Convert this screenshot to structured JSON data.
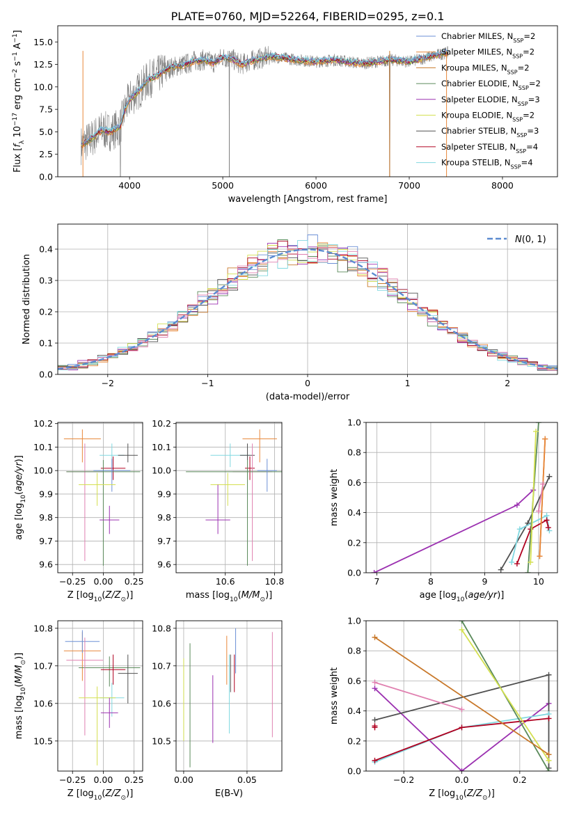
{
  "figure_title": "PLATE=0760, MJD=52264, FIBERID=0295, z=0.1",
  "colors": {
    "chabrier_miles": "#6b8fd6",
    "salpeter_miles": "#e8873a",
    "kroupa_miles": "#c8782a",
    "chabrier_elodie": "#5a8a5a",
    "salpeter_elodie": "#9b30b0",
    "kroupa_elodie": "#d4e050",
    "chabrier_stelib": "#505050",
    "salpeter_stelib": "#b00020",
    "kroupa_stelib": "#80d8e0",
    "pink": "#e080b0",
    "data": "#808080",
    "normal_curve": "#5b8bd0",
    "grid": "#b0b0b0"
  },
  "chart_data": [
    {
      "id": "spectrum",
      "type": "line",
      "title": "PLATE=0760, MJD=52264, FIBERID=0295, z=0.1",
      "xlabel": "wavelength [Angstrom, rest frame]",
      "ylabel": "Flux [f_λ 10^-17 erg cm^-2 s^-1 A^-1]",
      "xlim": [
        3230,
        8590
      ],
      "ylim": [
        0,
        16.8
      ],
      "xticks": [
        "4000",
        "5000",
        "6000",
        "7000",
        "8000"
      ],
      "yticks": [
        "0.0",
        "2.5",
        "5.0",
        "7.5",
        "10.0",
        "12.5",
        "15.0"
      ],
      "grid": false,
      "legend_position": "top-right",
      "legend": [
        {
          "label": "Chabrier MILES, N_SSP=2",
          "color_key": "chabrier_miles"
        },
        {
          "label": "Salpeter MILES, N_SSP=2",
          "color_key": "salpeter_miles"
        },
        {
          "label": "Kroupa MILES, N_SSP=2",
          "color_key": "kroupa_miles"
        },
        {
          "label": "Chabrier ELODIE, N_SSP=2",
          "color_key": "chabrier_elodie"
        },
        {
          "label": "Salpeter ELODIE, N_SSP=3",
          "color_key": "salpeter_elodie"
        },
        {
          "label": "Kroupa ELODIE, N_SSP=2",
          "color_key": "kroupa_elodie"
        },
        {
          "label": "Chabrier STELIB, N_SSP=3",
          "color_key": "chabrier_stelib"
        },
        {
          "label": "Salpeter STELIB, N_SSP=4",
          "color_key": "salpeter_stelib"
        },
        {
          "label": "Kroupa STELIB, N_SSP=4",
          "color_key": "kroupa_stelib"
        }
      ],
      "continuum": {
        "x": [
          3480,
          3600,
          3700,
          3800,
          3900,
          3950,
          4000,
          4100,
          4200,
          4300,
          4400,
          4500,
          4600,
          4700,
          4800,
          4900,
          5000,
          5100,
          5200,
          5300,
          5500,
          5800,
          6000,
          6200,
          6500,
          6800,
          7000,
          7200,
          7400
        ],
        "y": [
          3.5,
          4.3,
          5.2,
          5.0,
          5.6,
          7.5,
          8.6,
          9.6,
          10.8,
          11.3,
          12.0,
          12.3,
          12.5,
          12.9,
          13.0,
          12.7,
          13.3,
          13.1,
          12.5,
          12.9,
          13.4,
          13.0,
          12.8,
          13.0,
          12.6,
          13.0,
          12.8,
          13.3,
          13.8
        ]
      }
    },
    {
      "id": "residuals",
      "type": "bar",
      "xlabel": "(data-model)/error",
      "ylabel": "Normed distribution",
      "xlim": [
        -2.5,
        2.5
      ],
      "ylim": [
        0,
        0.48
      ],
      "xticks": [
        "−2",
        "−1",
        "0",
        "1",
        "2"
      ],
      "yticks": [
        "0.0",
        "0.1",
        "0.2",
        "0.3",
        "0.4"
      ],
      "grid": true,
      "legend_position": "top-right",
      "legend": [
        {
          "label": "N(0,1)",
          "color_key": "normal_curve"
        }
      ],
      "bin_width": 0.1
    },
    {
      "id": "z_age",
      "type": "scatter",
      "xlabel": "Z [log10(Z/Z⊙)]",
      "ylabel": "age [log10(age/yr)]",
      "xlim": [
        -0.37,
        0.32
      ],
      "ylim": [
        9.565,
        10.205
      ],
      "xticks": [
        "−0.25",
        "0.00",
        "0.25"
      ],
      "yticks": [
        "9.6",
        "9.7",
        "9.8",
        "9.9",
        "10.0",
        "10.1",
        "10.2"
      ],
      "grid": true,
      "points": [
        {
          "x": -0.17,
          "y": 10.135,
          "xerr": 0.15,
          "yerr": [
            0.1,
            0.04
          ],
          "color_key": "salpeter_miles"
        },
        {
          "x": 0.07,
          "y": 10.065,
          "xerr": 0.1,
          "yerr": [
            0.05,
            0.05
          ],
          "color_key": "kroupa_stelib"
        },
        {
          "x": 0.2,
          "y": 10.065,
          "xerr": 0.08,
          "yerr": [
            0.03,
            0.05
          ],
          "color_key": "chabrier_stelib"
        },
        {
          "x": 0.08,
          "y": 10.01,
          "xerr": 0.1,
          "yerr": [
            0.05,
            0.05
          ],
          "color_key": "salpeter_stelib"
        },
        {
          "x": -0.15,
          "y": 9.995,
          "xerr": 0.15,
          "yerr": [
            0.38,
            0.12
          ],
          "color_key": "pink"
        },
        {
          "x": 0.0,
          "y": 9.995,
          "xerr": 0.3,
          "yerr": [
            0.4,
            0.05
          ],
          "color_key": "chabrier_elodie"
        },
        {
          "x": 0.07,
          "y": 10.0,
          "xerr": 0.15,
          "yerr": [
            0.09,
            0.05
          ],
          "color_key": "chabrier_miles"
        },
        {
          "x": -0.05,
          "y": 9.94,
          "xerr": 0.15,
          "yerr": [
            0.09,
            0.05
          ],
          "color_key": "kroupa_elodie"
        },
        {
          "x": 0.05,
          "y": 9.79,
          "xerr": 0.08,
          "yerr": [
            0.06,
            0.06
          ],
          "color_key": "salpeter_elodie"
        }
      ]
    },
    {
      "id": "mass_age",
      "type": "scatter",
      "xlabel": "mass [log10(M/M⊙)]",
      "ylabel": "",
      "xlim": [
        10.4,
        10.83
      ],
      "ylim": [
        9.565,
        10.205
      ],
      "xticks": [
        "10.6",
        "10.8"
      ],
      "yticks": [
        "9.6",
        "9.7",
        "9.8",
        "9.9",
        "10.0",
        "10.1",
        "10.2"
      ],
      "grid": true,
      "points": [
        {
          "x": 10.74,
          "y": 10.135,
          "xerr": 0.07,
          "yerr": [
            0.1,
            0.04
          ],
          "color_key": "salpeter_miles"
        },
        {
          "x": 10.62,
          "y": 10.065,
          "xerr": 0.08,
          "yerr": [
            0.05,
            0.05
          ],
          "color_key": "kroupa_stelib"
        },
        {
          "x": 10.69,
          "y": 10.065,
          "xerr": 0.03,
          "yerr": [
            0.03,
            0.05
          ],
          "color_key": "chabrier_stelib"
        },
        {
          "x": 10.7,
          "y": 10.01,
          "xerr": 0.02,
          "yerr": [
            0.05,
            0.05
          ],
          "color_key": "salpeter_stelib"
        },
        {
          "x": 10.71,
          "y": 9.995,
          "xerr": 0.08,
          "yerr": [
            0.38,
            0.12
          ],
          "color_key": "pink"
        },
        {
          "x": 10.69,
          "y": 9.995,
          "xerr": 0.25,
          "yerr": [
            0.4,
            0.05
          ],
          "color_key": "chabrier_elodie"
        },
        {
          "x": 10.77,
          "y": 10.0,
          "xerr": 0.04,
          "yerr": [
            0.09,
            0.05
          ],
          "color_key": "chabrier_miles"
        },
        {
          "x": 10.61,
          "y": 9.94,
          "xerr": 0.07,
          "yerr": [
            0.09,
            0.05
          ],
          "color_key": "kroupa_elodie"
        },
        {
          "x": 10.57,
          "y": 9.79,
          "xerr": 0.05,
          "yerr": [
            0.06,
            0.15
          ],
          "color_key": "salpeter_elodie"
        }
      ]
    },
    {
      "id": "age_weight",
      "type": "line",
      "xlabel": "age [log10(age/yr)]",
      "ylabel": "mass weight",
      "xlim": [
        6.8,
        10.35
      ],
      "ylim": [
        0,
        1.0
      ],
      "xticks": [
        "7",
        "8",
        "9",
        "10"
      ],
      "yticks": [
        "0.0",
        "0.2",
        "0.4",
        "0.6",
        "0.8",
        "1.0"
      ],
      "grid": true,
      "series": [
        {
          "color_key": "salpeter_elodie",
          "x": [
            6.95,
            9.6,
            9.9
          ],
          "y": [
            0.0,
            0.45,
            0.55
          ]
        },
        {
          "color_key": "chabrier_stelib",
          "x": [
            9.3,
            9.8,
            10.2
          ],
          "y": [
            0.02,
            0.33,
            0.64
          ]
        },
        {
          "color_key": "kroupa_stelib",
          "x": [
            9.5,
            9.65,
            10.15,
            10.2
          ],
          "y": [
            0.07,
            0.29,
            0.38,
            0.28
          ]
        },
        {
          "color_key": "salpeter_stelib",
          "x": [
            9.6,
            9.85,
            10.15,
            10.18
          ],
          "y": [
            0.06,
            0.29,
            0.35,
            0.3
          ]
        },
        {
          "color_key": "chabrier_elodie",
          "x": [
            9.8,
            10.0
          ],
          "y": [
            0.0,
            1.0
          ]
        },
        {
          "color_key": "kroupa_elodie",
          "x": [
            9.85,
            9.95
          ],
          "y": [
            0.07,
            0.94
          ]
        },
        {
          "color_key": "kroupa_miles",
          "x": [
            10.02,
            10.12
          ],
          "y": [
            0.11,
            0.89
          ]
        },
        {
          "color_key": "salpeter_miles",
          "x": [
            10.02,
            10.12
          ],
          "y": [
            0.11,
            0.89
          ]
        },
        {
          "color_key": "pink",
          "x": [
            10.0,
            10.08
          ],
          "y": [
            0.41,
            0.59
          ]
        }
      ]
    },
    {
      "id": "z_mass",
      "type": "scatter",
      "xlabel": "Z [log10(Z/Z⊙)]",
      "ylabel": "mass [log10(M/M⊙)]",
      "xlim": [
        -0.37,
        0.32
      ],
      "ylim": [
        10.42,
        10.82
      ],
      "xticks": [
        "−0.25",
        "0.00",
        "0.25"
      ],
      "yticks": [
        "10.5",
        "10.6",
        "10.7",
        "10.8"
      ],
      "grid": true,
      "points": [
        {
          "x": -0.17,
          "y": 10.74,
          "xerr": 0.15,
          "yerr": [
            0.08,
            0.05
          ],
          "color_key": "salpeter_miles"
        },
        {
          "x": -0.17,
          "y": 10.765,
          "xerr": 0.14,
          "yerr": [
            0.03,
            0.03
          ],
          "color_key": "chabrier_miles"
        },
        {
          "x": 0.05,
          "y": 10.695,
          "xerr": 0.25,
          "yerr": [
            0.05,
            0.03
          ],
          "color_key": "chabrier_elodie"
        },
        {
          "x": 0.08,
          "y": 10.69,
          "xerr": 0.1,
          "yerr": [
            0.04,
            0.04
          ],
          "color_key": "salpeter_stelib"
        },
        {
          "x": 0.2,
          "y": 10.68,
          "xerr": 0.08,
          "yerr": [
            0.08,
            0.05
          ],
          "color_key": "chabrier_stelib"
        },
        {
          "x": -0.15,
          "y": 10.715,
          "xerr": 0.15,
          "yerr": [
            0.2,
            0.06
          ],
          "color_key": "pink"
        },
        {
          "x": 0.07,
          "y": 10.615,
          "xerr": 0.1,
          "yerr": [
            0.05,
            0.04
          ],
          "color_key": "kroupa_stelib"
        },
        {
          "x": -0.05,
          "y": 10.615,
          "xerr": 0.15,
          "yerr": [
            0.18,
            0.03
          ],
          "color_key": "kroupa_elodie"
        },
        {
          "x": 0.05,
          "y": 10.575,
          "xerr": 0.07,
          "yerr": [
            0.04,
            0.04
          ],
          "color_key": "salpeter_elodie"
        }
      ]
    },
    {
      "id": "ebv_mass",
      "type": "scatter",
      "xlabel": "E(B-V)",
      "ylabel": "",
      "xlim": [
        -0.006,
        0.0775
      ],
      "ylim": [
        10.42,
        10.82
      ],
      "xticks": [
        "0.00",
        "0.05"
      ],
      "yticks": [
        "10.5",
        "10.6",
        "10.7",
        "10.8"
      ],
      "grid": true,
      "points": [
        {
          "x": 0.0,
          "y": 10.62,
          "yerr": [
            0.12,
            0.1
          ],
          "color_key": "kroupa_elodie"
        },
        {
          "x": 0.005,
          "y": 10.6,
          "yerr": [
            0.17,
            0.16
          ],
          "color_key": "chabrier_elodie"
        },
        {
          "x": 0.023,
          "y": 10.585,
          "yerr": [
            0.09,
            0.09
          ],
          "color_key": "salpeter_elodie"
        },
        {
          "x": 0.034,
          "y": 10.71,
          "yerr": [
            0.06,
            0.07
          ],
          "color_key": "salpeter_miles"
        },
        {
          "x": 0.036,
          "y": 10.63,
          "yerr": [
            0.11,
            0.1
          ],
          "color_key": "kroupa_stelib"
        },
        {
          "x": 0.037,
          "y": 10.68,
          "yerr": [
            0.05,
            0.05
          ],
          "color_key": "chabrier_stelib"
        },
        {
          "x": 0.04,
          "y": 10.68,
          "yerr": [
            0.05,
            0.05
          ],
          "color_key": "salpeter_stelib"
        },
        {
          "x": 0.041,
          "y": 10.74,
          "yerr": [
            0.06,
            0.06
          ],
          "color_key": "chabrier_miles"
        },
        {
          "x": 0.07,
          "y": 10.65,
          "yerr": [
            0.14,
            0.14
          ],
          "color_key": "pink"
        }
      ]
    },
    {
      "id": "z_weight",
      "type": "line",
      "xlabel": "Z [log10(Z/Z⊙)]",
      "ylabel": "mass weight",
      "xlim": [
        -0.33,
        0.33
      ],
      "ylim": [
        0,
        1.0
      ],
      "xticks": [
        "−0.2",
        "0.0",
        "0.2"
      ],
      "yticks": [
        "0.0",
        "0.2",
        "0.4",
        "0.6",
        "0.8",
        "1.0"
      ],
      "grid": true,
      "series": [
        {
          "color_key": "salpeter_elodie",
          "x": [
            -0.3,
            0.0,
            0.3
          ],
          "y": [
            0.55,
            0.0,
            0.45
          ]
        },
        {
          "color_key": "chabrier_stelib",
          "x": [
            -0.3,
            0.3,
            0.3
          ],
          "y": [
            0.34,
            0.64,
            0.02
          ]
        },
        {
          "color_key": "kroupa_stelib",
          "x": [
            -0.3,
            0.0,
            0.3
          ],
          "y": [
            0.06,
            0.29,
            0.38
          ]
        },
        {
          "color_key": "salpeter_stelib",
          "x": [
            -0.3,
            0.0,
            0.3
          ],
          "y": [
            0.07,
            0.29,
            0.35
          ]
        },
        {
          "color_key": "chabrier_elodie",
          "x": [
            0.0,
            0.3
          ],
          "y": [
            1.0,
            0.0
          ]
        },
        {
          "color_key": "kroupa_elodie",
          "x": [
            0.0,
            0.3
          ],
          "y": [
            0.94,
            0.07
          ]
        },
        {
          "color_key": "kroupa_miles",
          "x": [
            -0.3,
            0.3
          ],
          "y": [
            0.89,
            0.11
          ]
        },
        {
          "color_key": "pink",
          "x": [
            -0.3,
            0.0
          ],
          "y": [
            0.59,
            0.41
          ]
        },
        {
          "color_key": "salpeter_stelib",
          "x": [
            -0.3,
            -0.3
          ],
          "y": [
            0.29,
            0.3
          ]
        }
      ]
    }
  ]
}
